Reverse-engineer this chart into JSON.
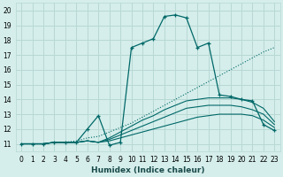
{
  "xlabel": "Humidex (Indice chaleur)",
  "bg_color": "#d5eeeb",
  "grid_color": "#b8d8d4",
  "line_color": "#006868",
  "xlim": [
    -0.5,
    23.5
  ],
  "ylim": [
    10.5,
    20.5
  ],
  "xticks": [
    0,
    1,
    2,
    3,
    4,
    5,
    6,
    7,
    8,
    9,
    10,
    11,
    12,
    13,
    14,
    15,
    16,
    17,
    18,
    19,
    20,
    21,
    22,
    23
  ],
  "yticks": [
    11,
    12,
    13,
    14,
    15,
    16,
    17,
    18,
    19,
    20
  ],
  "main_x": [
    0,
    1,
    2,
    3,
    4,
    5,
    6,
    7,
    8,
    9,
    10,
    11,
    12,
    13,
    14,
    15,
    16,
    17,
    18,
    19,
    20,
    21,
    22,
    23
  ],
  "main_y": [
    11,
    11,
    11,
    11.1,
    11.1,
    11.1,
    12.0,
    12.9,
    10.9,
    11.1,
    17.5,
    17.8,
    18.1,
    19.6,
    19.7,
    19.5,
    17.5,
    17.8,
    14.3,
    14.2,
    14.0,
    13.9,
    12.3,
    11.9
  ],
  "dotted_x": [
    0,
    1,
    2,
    3,
    4,
    5,
    6,
    7,
    8,
    9,
    10,
    11,
    12,
    13,
    14,
    15,
    16,
    17,
    18,
    19,
    20,
    21,
    22,
    23
  ],
  "dotted_y": [
    11,
    11,
    11,
    11.1,
    11.1,
    11.2,
    11.4,
    11.5,
    11.8,
    12.1,
    12.4,
    12.8,
    13.2,
    13.6,
    14.0,
    14.4,
    14.8,
    15.2,
    15.6,
    16.0,
    16.4,
    16.8,
    17.2,
    17.5
  ],
  "low1_x": [
    0,
    1,
    2,
    3,
    4,
    5,
    6,
    7,
    8,
    9,
    10,
    11,
    12,
    13,
    14,
    15,
    16,
    17,
    18,
    19,
    20,
    21,
    22,
    23
  ],
  "low1_y": [
    11,
    11,
    11,
    11.1,
    11.1,
    11.1,
    11.2,
    11.1,
    11.2,
    11.4,
    11.6,
    11.8,
    12.0,
    12.2,
    12.4,
    12.6,
    12.8,
    12.9,
    13.0,
    13.0,
    13.0,
    12.9,
    12.6,
    12.1
  ],
  "low2_x": [
    0,
    1,
    2,
    3,
    4,
    5,
    6,
    7,
    8,
    9,
    10,
    11,
    12,
    13,
    14,
    15,
    16,
    17,
    18,
    19,
    20,
    21,
    22,
    23
  ],
  "low2_y": [
    11,
    11,
    11,
    11.1,
    11.1,
    11.1,
    11.2,
    11.1,
    11.3,
    11.6,
    11.9,
    12.2,
    12.5,
    12.8,
    13.1,
    13.4,
    13.5,
    13.6,
    13.6,
    13.6,
    13.5,
    13.3,
    13.0,
    12.3
  ],
  "low3_x": [
    0,
    1,
    2,
    3,
    4,
    5,
    6,
    7,
    8,
    9,
    10,
    11,
    12,
    13,
    14,
    15,
    16,
    17,
    18,
    19,
    20,
    21,
    22,
    23
  ],
  "low3_y": [
    11,
    11,
    11,
    11.1,
    11.1,
    11.1,
    11.2,
    11.1,
    11.4,
    11.8,
    12.2,
    12.6,
    12.9,
    13.3,
    13.6,
    13.9,
    14.0,
    14.1,
    14.1,
    14.1,
    14.0,
    13.8,
    13.4,
    12.5
  ]
}
